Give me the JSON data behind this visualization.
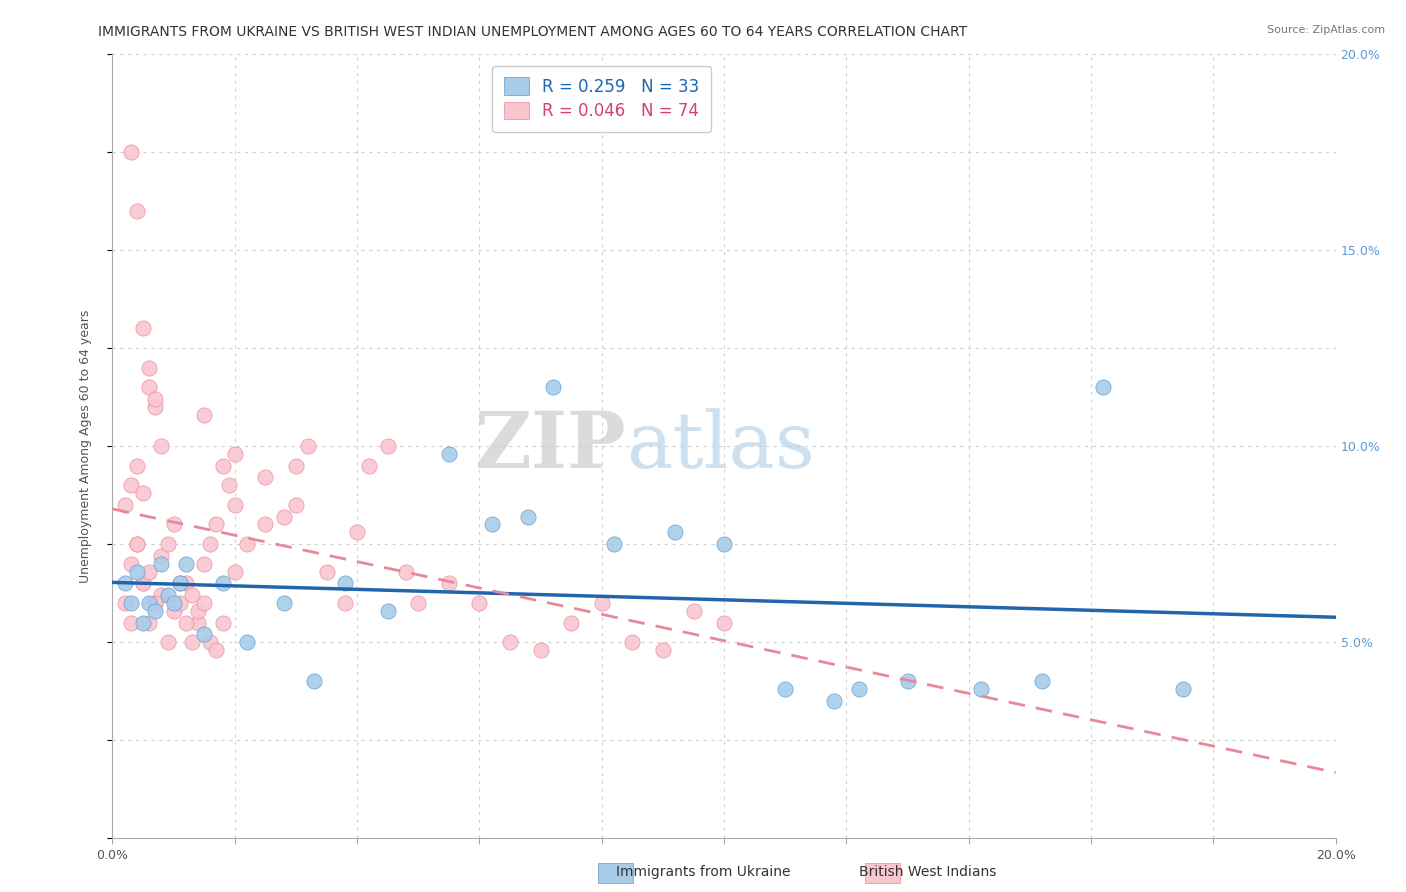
{
  "title": "IMMIGRANTS FROM UKRAINE VS BRITISH WEST INDIAN UNEMPLOYMENT AMONG AGES 60 TO 64 YEARS CORRELATION CHART",
  "source": "Source: ZipAtlas.com",
  "ylabel": "Unemployment Among Ages 60 to 64 years",
  "xlim": [
    0.0,
    0.2
  ],
  "ylim": [
    0.0,
    0.2
  ],
  "xticks": [
    0.0,
    0.02,
    0.04,
    0.06,
    0.08,
    0.1,
    0.12,
    0.14,
    0.16,
    0.18,
    0.2
  ],
  "yticks": [
    0.0,
    0.025,
    0.05,
    0.075,
    0.1,
    0.125,
    0.15,
    0.175,
    0.2
  ],
  "right_ytick_labels": [
    "5.0%",
    "10.0%",
    "15.0%",
    "20.0%"
  ],
  "right_ytick_positions": [
    0.05,
    0.1,
    0.15,
    0.2
  ],
  "ukraine_R": 0.259,
  "ukraine_N": 33,
  "bwi_R": 0.046,
  "bwi_N": 74,
  "ukraine_color": "#a8cce8",
  "ukraine_edge_color": "#5b9bd5",
  "bwi_color": "#f9c6d0",
  "bwi_edge_color": "#e8899a",
  "ukraine_trend_color": "#2166ac",
  "bwi_trend_color": "#e8899a",
  "background_color": "#ffffff",
  "grid_color": "#d0d0d0",
  "watermark": "ZIPatlas",
  "ukraine_x": [
    0.002,
    0.003,
    0.004,
    0.005,
    0.006,
    0.007,
    0.008,
    0.009,
    0.01,
    0.011,
    0.012,
    0.015,
    0.018,
    0.022,
    0.028,
    0.033,
    0.038,
    0.045,
    0.055,
    0.062,
    0.068,
    0.072,
    0.082,
    0.092,
    0.1,
    0.11,
    0.118,
    0.122,
    0.13,
    0.142,
    0.152,
    0.162,
    0.175
  ],
  "ukraine_y": [
    0.065,
    0.06,
    0.068,
    0.055,
    0.06,
    0.058,
    0.07,
    0.062,
    0.06,
    0.065,
    0.07,
    0.052,
    0.065,
    0.05,
    0.06,
    0.04,
    0.065,
    0.058,
    0.098,
    0.08,
    0.082,
    0.115,
    0.075,
    0.078,
    0.075,
    0.038,
    0.035,
    0.038,
    0.04,
    0.038,
    0.04,
    0.115,
    0.038
  ],
  "bwi_x": [
    0.002,
    0.003,
    0.004,
    0.005,
    0.006,
    0.007,
    0.008,
    0.009,
    0.01,
    0.011,
    0.012,
    0.013,
    0.014,
    0.015,
    0.016,
    0.017,
    0.018,
    0.019,
    0.02,
    0.003,
    0.004,
    0.005,
    0.006,
    0.007,
    0.008,
    0.009,
    0.01,
    0.011,
    0.012,
    0.013,
    0.014,
    0.015,
    0.016,
    0.017,
    0.018,
    0.02,
    0.022,
    0.025,
    0.028,
    0.03,
    0.032,
    0.035,
    0.038,
    0.04,
    0.042,
    0.045,
    0.048,
    0.05,
    0.055,
    0.06,
    0.065,
    0.07,
    0.075,
    0.08,
    0.085,
    0.09,
    0.095,
    0.1,
    0.003,
    0.004,
    0.005,
    0.006,
    0.007,
    0.008,
    0.002,
    0.003,
    0.004,
    0.005,
    0.006,
    0.007,
    0.015,
    0.02,
    0.025,
    0.03
  ],
  "bwi_y": [
    0.06,
    0.055,
    0.075,
    0.065,
    0.055,
    0.06,
    0.062,
    0.05,
    0.058,
    0.06,
    0.065,
    0.062,
    0.055,
    0.07,
    0.075,
    0.08,
    0.095,
    0.09,
    0.085,
    0.07,
    0.075,
    0.065,
    0.068,
    0.06,
    0.072,
    0.075,
    0.08,
    0.065,
    0.055,
    0.05,
    0.058,
    0.06,
    0.05,
    0.048,
    0.055,
    0.068,
    0.075,
    0.08,
    0.082,
    0.095,
    0.1,
    0.068,
    0.06,
    0.078,
    0.095,
    0.1,
    0.068,
    0.06,
    0.065,
    0.06,
    0.05,
    0.048,
    0.055,
    0.06,
    0.05,
    0.048,
    0.058,
    0.055,
    0.175,
    0.16,
    0.13,
    0.12,
    0.11,
    0.1,
    0.085,
    0.09,
    0.095,
    0.088,
    0.115,
    0.112,
    0.108,
    0.098,
    0.092,
    0.085
  ],
  "title_fontsize": 10,
  "label_fontsize": 9,
  "tick_fontsize": 9,
  "legend_fontsize": 12
}
